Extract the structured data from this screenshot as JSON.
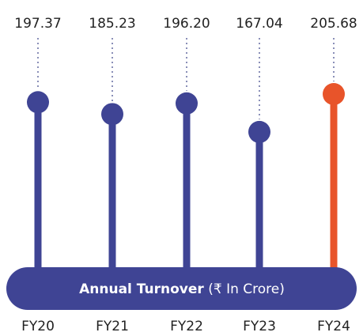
{
  "chart_data": {
    "type": "lollipop",
    "title": "Annual Turnover",
    "unit": "(₹ In Crore)",
    "categories": [
      "FY20",
      "FY21",
      "FY22",
      "FY23",
      "FY24"
    ],
    "values": [
      197.37,
      185.23,
      196.2,
      167.04,
      205.68
    ],
    "value_labels": [
      "197.37",
      "185.23",
      "196.20",
      "167.04",
      "205.68"
    ],
    "colors": [
      "#3f4494",
      "#3f4494",
      "#3f4494",
      "#3f4494",
      "#e8542a"
    ]
  }
}
